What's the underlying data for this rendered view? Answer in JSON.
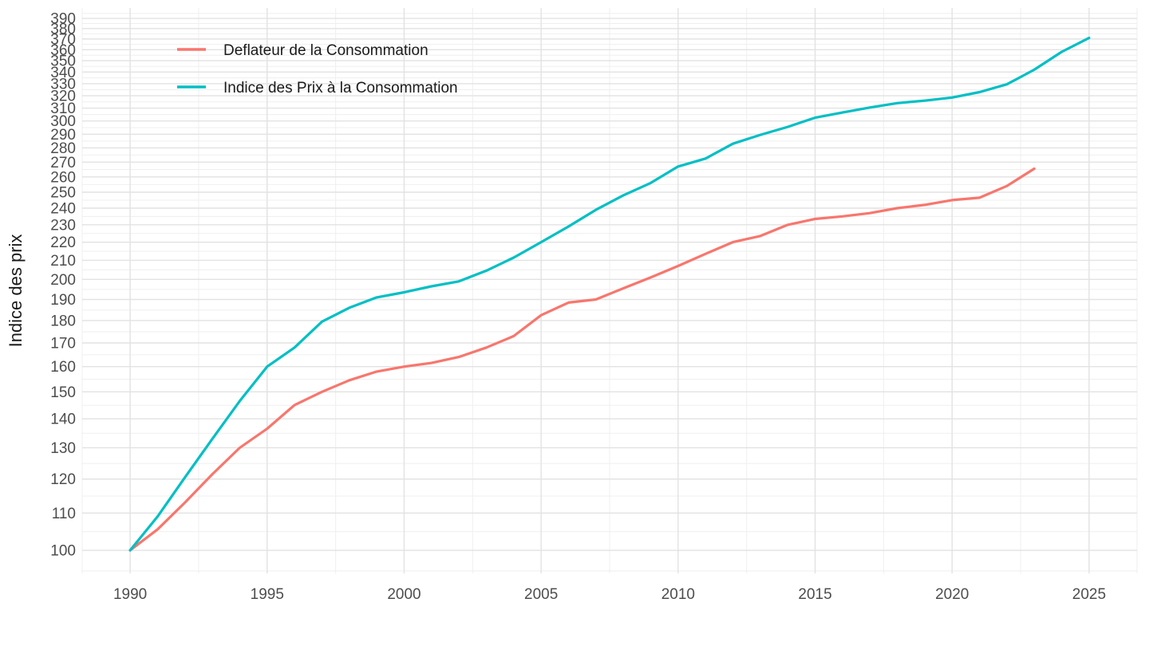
{
  "chart_data": {
    "type": "line",
    "title": "",
    "xlabel": "",
    "ylabel": "Indice des prix",
    "y_scale": "log10",
    "grid": "on",
    "legend_position": "inside-top-left",
    "x_ticks": [
      1990,
      1995,
      2000,
      2005,
      2010,
      2015,
      2020,
      2025
    ],
    "y_ticks": [
      100,
      110,
      120,
      130,
      140,
      150,
      160,
      170,
      180,
      190,
      200,
      210,
      220,
      230,
      240,
      250,
      260,
      270,
      280,
      290,
      300,
      310,
      320,
      330,
      340,
      350,
      360,
      370,
      380,
      390
    ],
    "x_domain": [
      1988.25,
      2026.75
    ],
    "y_domain": [
      94.26,
      400.55
    ],
    "colors": {
      "grid_major": "#e2e2e2",
      "grid_minor": "#efefef",
      "tick_text": "#4d4d4d",
      "title_text": "#1a1a1a"
    },
    "series": [
      {
        "name": "Deflateur de la Consommation",
        "color": "#F8766D",
        "years": [
          1990,
          1991,
          1992,
          1993,
          1994,
          1995,
          1996,
          1997,
          1998,
          1999,
          2000,
          2001,
          2002,
          2003,
          2004,
          2005,
          2006,
          2007,
          2008,
          2009,
          2010,
          2011,
          2012,
          2013,
          2014,
          2015,
          2016,
          2017,
          2018,
          2019,
          2020,
          2021,
          2022,
          2023
        ],
        "values": [
          100,
          105.5,
          113,
          121.5,
          130,
          136.5,
          145,
          150,
          154.5,
          158,
          160,
          161.5,
          164,
          168,
          173,
          182.5,
          188.5,
          190,
          195.5,
          201,
          207,
          213.5,
          220,
          223.5,
          230,
          233.5,
          235,
          237,
          240,
          242,
          245,
          246.5,
          254,
          265.5
        ]
      },
      {
        "name": "Indice des Prix à la Consommation",
        "color": "#00BFC4",
        "years": [
          1990,
          1991,
          1992,
          1993,
          1994,
          1995,
          1996,
          1997,
          1998,
          1999,
          2000,
          2001,
          2002,
          2003,
          2004,
          2005,
          2006,
          2007,
          2008,
          2009,
          2010,
          2011,
          2012,
          2013,
          2014,
          2015,
          2016,
          2017,
          2018,
          2019,
          2020,
          2021,
          2022,
          2023,
          2024,
          2025
        ],
        "values": [
          100,
          109,
          120.5,
          133,
          146.5,
          160,
          168,
          179.5,
          186,
          191,
          193.5,
          196.5,
          199,
          204.5,
          211.5,
          220,
          229,
          239,
          248,
          256,
          267,
          272.5,
          283,
          289.5,
          295.5,
          302.5,
          306.5,
          310.5,
          314,
          316,
          318.5,
          323,
          329.5,
          342,
          358,
          371
        ]
      }
    ]
  }
}
